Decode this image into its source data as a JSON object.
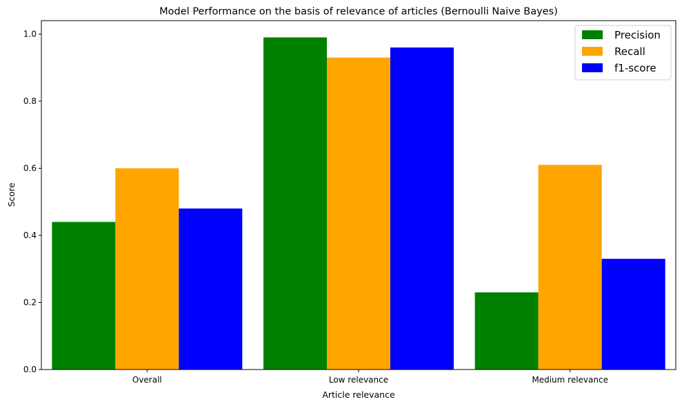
{
  "chart_data": {
    "type": "bar",
    "title": "Model Performance on the basis of relevance of articles (Bernoulli Naive Bayes)",
    "xlabel": "Article relevance",
    "ylabel": "Score",
    "categories": [
      "Overall",
      "Low relevance",
      "Medium relevance"
    ],
    "series": [
      {
        "name": "Precision",
        "color": "#008000",
        "values": [
          0.44,
          0.99,
          0.23
        ]
      },
      {
        "name": "Recall",
        "color": "#FFA500",
        "values": [
          0.6,
          0.93,
          0.61
        ]
      },
      {
        "name": "f1-score",
        "color": "#0000FF",
        "values": [
          0.48,
          0.96,
          0.33
        ]
      }
    ],
    "ylim": [
      0,
      1.04
    ],
    "yticks": [
      "0.0",
      "0.2",
      "0.4",
      "0.6",
      "0.8",
      "1.0"
    ],
    "grid": false,
    "legend_position": "top-right"
  }
}
